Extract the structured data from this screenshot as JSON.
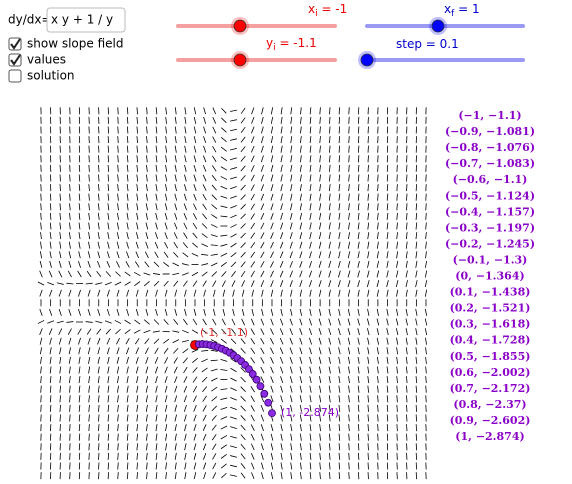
{
  "equation": {
    "label": "dy/dx=",
    "value": "x y + 1 / y"
  },
  "checkboxes": [
    {
      "label": "show slope field",
      "checked": true
    },
    {
      "label": "values",
      "checked": true
    },
    {
      "label": "solution",
      "checked": false
    }
  ],
  "sliders": [
    {
      "symbol": "x",
      "subscript": "i",
      "text": " = -1",
      "value": -1,
      "color": "#ff0000"
    },
    {
      "symbol": "y",
      "subscript": "i",
      "text": " = -1.1",
      "value": -1.1,
      "color": "#ff0000"
    },
    {
      "symbol": "x",
      "subscript": "f",
      "text": " = 1",
      "value": 1,
      "color": "#0000ff"
    },
    {
      "text": "step = 0.1",
      "value": 0.1,
      "color": "#0000ff"
    }
  ],
  "points": [
    {
      "x": -1,
      "y": -1.1,
      "label": "(−1, −1.1)"
    },
    {
      "x": -0.9,
      "y": -1.081,
      "label": "(−0.9, −1.081)"
    },
    {
      "x": -0.8,
      "y": -1.076,
      "label": "(−0.8, −1.076)"
    },
    {
      "x": -0.7,
      "y": -1.083,
      "label": "(−0.7, −1.083)"
    },
    {
      "x": -0.6,
      "y": -1.1,
      "label": "(−0.6, −1.1)"
    },
    {
      "x": -0.5,
      "y": -1.124,
      "label": "(−0.5, −1.124)"
    },
    {
      "x": -0.4,
      "y": -1.157,
      "label": "(−0.4, −1.157)"
    },
    {
      "x": -0.3,
      "y": -1.197,
      "label": "(−0.3, −1.197)"
    },
    {
      "x": -0.2,
      "y": -1.245,
      "label": "(−0.2, −1.245)"
    },
    {
      "x": -0.1,
      "y": -1.3,
      "label": "(−0.1, −1.3)"
    },
    {
      "x": 0,
      "y": -1.364,
      "label": "(0, −1.364)"
    },
    {
      "x": 0.1,
      "y": -1.438,
      "label": "(0.1, −1.438)"
    },
    {
      "x": 0.2,
      "y": -1.521,
      "label": "(0.2, −1.521)"
    },
    {
      "x": 0.3,
      "y": -1.618,
      "label": "(0.3, −1.618)"
    },
    {
      "x": 0.4,
      "y": -1.728,
      "label": "(0.4, −1.728)"
    },
    {
      "x": 0.5,
      "y": -1.855,
      "label": "(0.5, −1.855)"
    },
    {
      "x": 0.6,
      "y": -2.002,
      "label": "(0.6, −2.002)"
    },
    {
      "x": 0.7,
      "y": -2.172,
      "label": "(0.7, −2.172)"
    },
    {
      "x": 0.8,
      "y": -2.37,
      "label": "(0.8, −2.37)"
    },
    {
      "x": 0.9,
      "y": -2.602,
      "label": "(0.9, −2.602)"
    },
    {
      "x": 1,
      "y": -2.874,
      "label": "(1, −2.874)"
    }
  ],
  "start_label": "(-1, -1.1)",
  "end_label": "(1, -2.874)"
}
